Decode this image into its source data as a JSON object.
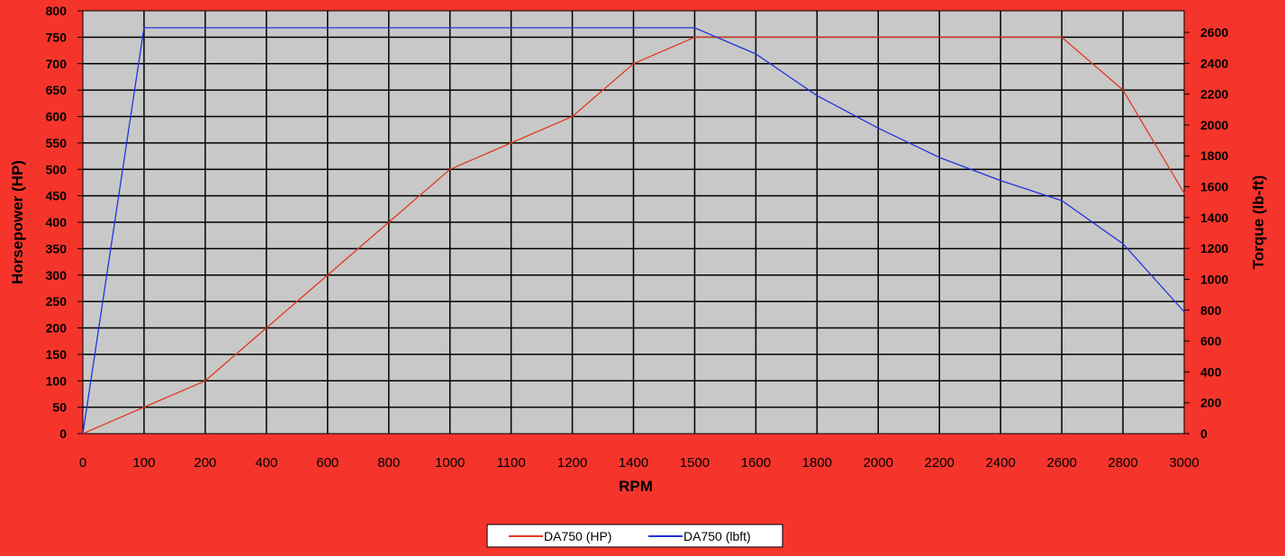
{
  "chart_data": {
    "type": "line",
    "xlabel": "RPM",
    "ylabel_left": "Horsepower (HP)",
    "ylabel_right": "Torque (lb-ft)",
    "categories": [
      "0",
      "100",
      "200",
      "400",
      "600",
      "800",
      "1000",
      "1100",
      "1200",
      "1400",
      "1500",
      "1600",
      "1800",
      "2000",
      "2200",
      "2400",
      "2600",
      "2800",
      "3000"
    ],
    "y_left": {
      "min": 0,
      "max": 800,
      "ticks": [
        0,
        50,
        100,
        150,
        200,
        250,
        300,
        350,
        400,
        450,
        500,
        550,
        600,
        650,
        700,
        750,
        800
      ]
    },
    "y_right": {
      "min": 0,
      "max": 2740,
      "ticks": [
        0,
        200,
        400,
        600,
        800,
        1000,
        1200,
        1400,
        1600,
        1800,
        2000,
        2200,
        2400,
        2600
      ]
    },
    "grid": true,
    "legend_position": "bottom-center",
    "series": [
      {
        "name": "DA750 (HP)",
        "axis": "left",
        "color": "#e03a1e",
        "values": [
          0,
          50,
          100,
          200,
          300,
          400,
          500,
          550,
          600,
          700,
          750,
          750,
          750,
          750,
          750,
          750,
          750,
          650,
          455
        ]
      },
      {
        "name": "DA750 (lbft)",
        "axis": "right",
        "color": "#2233dd",
        "values": [
          0,
          2630,
          2630,
          2630,
          2630,
          2630,
          2630,
          2630,
          2630,
          2630,
          2630,
          2460,
          2190,
          1980,
          1790,
          1640,
          1510,
          1230,
          790
        ]
      }
    ]
  },
  "colors": {
    "background": "#f5352c",
    "plot_area": "#c8c8c8",
    "grid": "#000000"
  }
}
